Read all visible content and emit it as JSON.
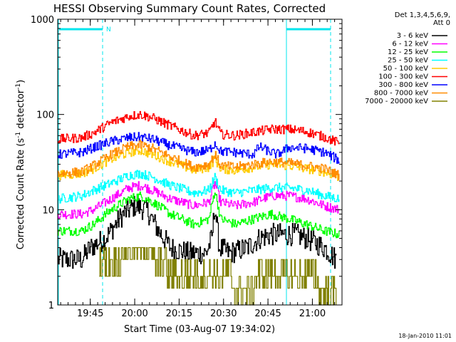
{
  "chart_data": {
    "type": "line",
    "title": "HESSI Observing Summary Count Rates, Corrected",
    "xlabel": "Start Time (03-Aug-07 19:34:02)",
    "ylabel_main": "Corrected Count Rate (s",
    "ylabel_sup1": "-1",
    "ylabel_mid": " detector",
    "ylabel_sup2": "-1",
    "ylabel_end": ")",
    "yscale": "log",
    "ylim": [
      1,
      1000
    ],
    "xlim_minutes": [
      0,
      96
    ],
    "x_ticks": [
      {
        "label": "19:45",
        "min": 11
      },
      {
        "label": "20:00",
        "min": 26
      },
      {
        "label": "20:15",
        "min": 41
      },
      {
        "label": "20:30",
        "min": 56
      },
      {
        "label": "20:45",
        "min": 71
      },
      {
        "label": "21:00",
        "min": 86
      }
    ],
    "y_ticks": [
      {
        "label": "1",
        "value": 1
      },
      {
        "label": "10",
        "value": 10
      },
      {
        "label": "100",
        "value": 100
      },
      {
        "label": "1000",
        "value": 1000
      }
    ],
    "legend_header": [
      "Det 1,3,4,5,6,9,",
      "Att 0"
    ],
    "legend_position": "outside-right",
    "series": [
      {
        "name": "3 - 6 keV",
        "color": "#000000",
        "points": [
          [
            0,
            3
          ],
          [
            8,
            3
          ],
          [
            11,
            4
          ],
          [
            16,
            5
          ],
          [
            22,
            9
          ],
          [
            26,
            11
          ],
          [
            30,
            10
          ],
          [
            34,
            6
          ],
          [
            38,
            4
          ],
          [
            44,
            3.5
          ],
          [
            50,
            3.5
          ],
          [
            52,
            5
          ],
          [
            53,
            11
          ],
          [
            54.5,
            4
          ],
          [
            58,
            3.5
          ],
          [
            64,
            4
          ],
          [
            68,
            5
          ],
          [
            72,
            5.5
          ],
          [
            80,
            5.5
          ],
          [
            84,
            5
          ],
          [
            90,
            4
          ],
          [
            94,
            3
          ]
        ]
      },
      {
        "name": "6 - 12 keV",
        "color": "#ff00ff",
        "points": [
          [
            0,
            9
          ],
          [
            8,
            9
          ],
          [
            12,
            10
          ],
          [
            18,
            13
          ],
          [
            24,
            17
          ],
          [
            28,
            18
          ],
          [
            32,
            16
          ],
          [
            38,
            13
          ],
          [
            46,
            11
          ],
          [
            51,
            12
          ],
          [
            53,
            19
          ],
          [
            55,
            12
          ],
          [
            60,
            11
          ],
          [
            66,
            12
          ],
          [
            72,
            14
          ],
          [
            78,
            14
          ],
          [
            84,
            13
          ],
          [
            90,
            11
          ],
          [
            95,
            10
          ]
        ]
      },
      {
        "name": "12 - 25 keV",
        "color": "#00ff00",
        "points": [
          [
            0,
            6
          ],
          [
            8,
            6
          ],
          [
            12,
            7
          ],
          [
            18,
            10
          ],
          [
            24,
            13
          ],
          [
            28,
            14
          ],
          [
            32,
            12
          ],
          [
            38,
            9
          ],
          [
            46,
            7
          ],
          [
            51,
            8
          ],
          [
            53,
            16
          ],
          [
            55,
            8
          ],
          [
            60,
            7
          ],
          [
            66,
            8
          ],
          [
            72,
            9
          ],
          [
            78,
            8
          ],
          [
            84,
            7
          ],
          [
            90,
            6
          ],
          [
            95,
            5.5
          ]
        ]
      },
      {
        "name": "25 - 50 keV",
        "color": "#00ffff",
        "points": [
          [
            0,
            13
          ],
          [
            8,
            14
          ],
          [
            12,
            16
          ],
          [
            18,
            19
          ],
          [
            24,
            23
          ],
          [
            28,
            24
          ],
          [
            32,
            22
          ],
          [
            38,
            18
          ],
          [
            46,
            15
          ],
          [
            51,
            16
          ],
          [
            53,
            22
          ],
          [
            55,
            16
          ],
          [
            60,
            15
          ],
          [
            66,
            16
          ],
          [
            72,
            17
          ],
          [
            78,
            17
          ],
          [
            84,
            16
          ],
          [
            90,
            14
          ],
          [
            95,
            13
          ]
        ]
      },
      {
        "name": "50 - 100 keV",
        "color": "#ffcc00",
        "points": [
          [
            0,
            23
          ],
          [
            8,
            24
          ],
          [
            12,
            27
          ],
          [
            18,
            34
          ],
          [
            24,
            40
          ],
          [
            28,
            42
          ],
          [
            32,
            38
          ],
          [
            38,
            32
          ],
          [
            46,
            26
          ],
          [
            51,
            28
          ],
          [
            53,
            34
          ],
          [
            55,
            27
          ],
          [
            60,
            26
          ],
          [
            66,
            28
          ],
          [
            72,
            30
          ],
          [
            78,
            29
          ],
          [
            84,
            27
          ],
          [
            90,
            25
          ],
          [
            95,
            22
          ]
        ]
      },
      {
        "name": "100 - 300 keV",
        "color": "#ff0000",
        "points": [
          [
            0,
            55
          ],
          [
            8,
            57
          ],
          [
            12,
            64
          ],
          [
            18,
            82
          ],
          [
            24,
            96
          ],
          [
            28,
            100
          ],
          [
            32,
            92
          ],
          [
            38,
            76
          ],
          [
            46,
            60
          ],
          [
            51,
            64
          ],
          [
            53,
            85
          ],
          [
            55,
            62
          ],
          [
            60,
            60
          ],
          [
            66,
            65
          ],
          [
            72,
            70
          ],
          [
            78,
            70
          ],
          [
            84,
            66
          ],
          [
            90,
            58
          ],
          [
            95,
            50
          ]
        ]
      },
      {
        "name": "300 - 800 keV",
        "color": "#0000ff",
        "points": [
          [
            0,
            38
          ],
          [
            8,
            40
          ],
          [
            12,
            45
          ],
          [
            18,
            52
          ],
          [
            24,
            57
          ],
          [
            28,
            58
          ],
          [
            32,
            55
          ],
          [
            38,
            47
          ],
          [
            46,
            40
          ],
          [
            51,
            42
          ],
          [
            53,
            50
          ],
          [
            55,
            41
          ],
          [
            60,
            40
          ],
          [
            66,
            38
          ],
          [
            68,
            46
          ],
          [
            72,
            40
          ],
          [
            74,
            38
          ],
          [
            78,
            45
          ],
          [
            84,
            44
          ],
          [
            90,
            40
          ],
          [
            95,
            33
          ]
        ]
      },
      {
        "name": "800 - 7000 keV",
        "color": "#ff8c00",
        "points": [
          [
            0,
            24
          ],
          [
            8,
            25
          ],
          [
            12,
            29
          ],
          [
            18,
            38
          ],
          [
            24,
            46
          ],
          [
            28,
            48
          ],
          [
            32,
            44
          ],
          [
            38,
            36
          ],
          [
            46,
            28
          ],
          [
            51,
            30
          ],
          [
            53,
            38
          ],
          [
            55,
            29
          ],
          [
            60,
            28
          ],
          [
            66,
            30
          ],
          [
            72,
            32
          ],
          [
            78,
            31
          ],
          [
            84,
            29
          ],
          [
            90,
            27
          ],
          [
            95,
            23
          ]
        ]
      },
      {
        "name": "7000 - 20000 keV",
        "color": "#808000",
        "points": [
          [
            14,
            3
          ],
          [
            18,
            3
          ],
          [
            24,
            4
          ],
          [
            30,
            4
          ],
          [
            34,
            3
          ],
          [
            40,
            2
          ],
          [
            50,
            2
          ],
          [
            56,
            2
          ],
          [
            62,
            1.5
          ],
          [
            70,
            2
          ],
          [
            80,
            2
          ],
          [
            86,
            2
          ],
          [
            90,
            1.5
          ],
          [
            94,
            1.5
          ]
        ]
      }
    ],
    "annotations": [
      {
        "label": "N",
        "min": 16
      }
    ],
    "footer_timestamp": "18-Jan-2010 11:01"
  }
}
